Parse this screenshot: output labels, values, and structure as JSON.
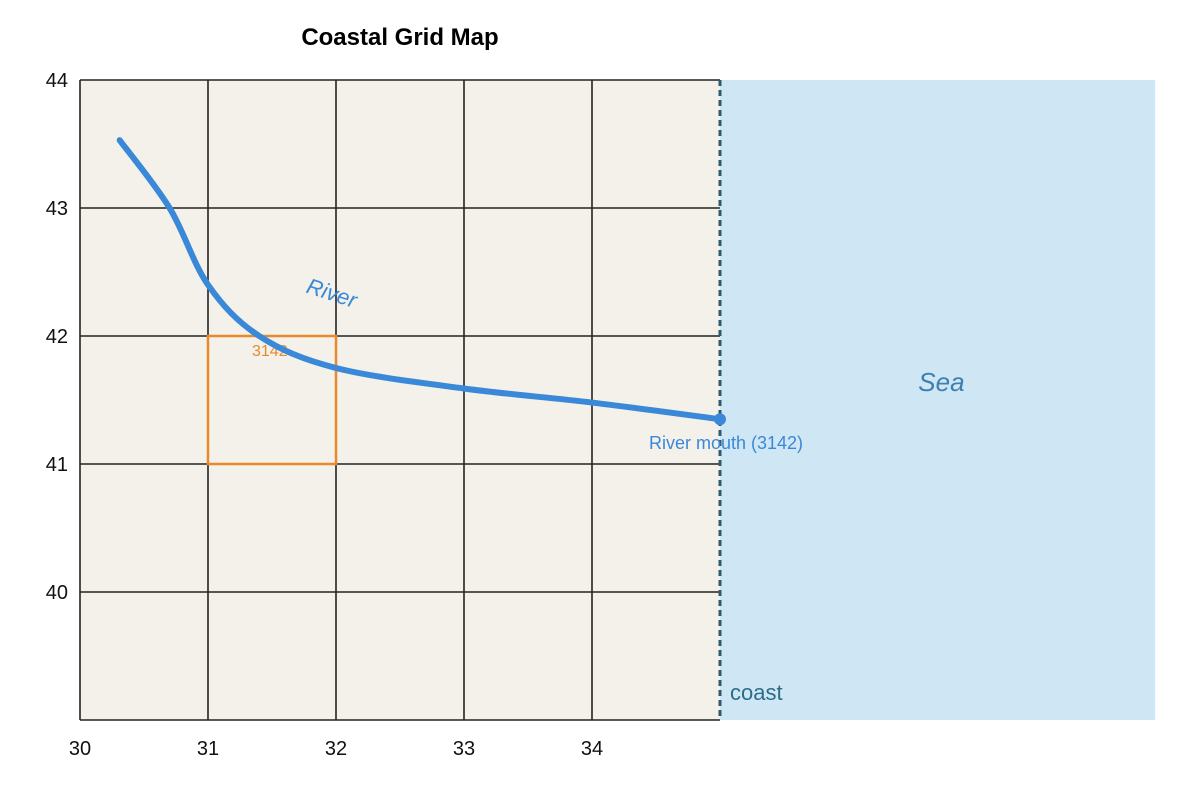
{
  "title": "Coastal Grid Map",
  "colors": {
    "land": "#f3f1ea",
    "sea": "#cfe7f4",
    "grid": "#222222",
    "river": "#3a88d8",
    "highlight": "#e8892e",
    "coast": "#2e5a6e",
    "sea_text": "#3f7fb0",
    "coast_text": "#2c6c86"
  },
  "axes": {
    "x_ticks": [
      30,
      31,
      32,
      33,
      34
    ],
    "y_ticks": [
      40,
      41,
      42,
      43,
      44
    ],
    "x_range": [
      30,
      35
    ],
    "y_range": [
      39,
      44
    ],
    "sea_x_range": [
      35,
      38.4
    ]
  },
  "coast": {
    "label": "coast",
    "x": 35
  },
  "sea": {
    "label": "Sea",
    "x": 36.73,
    "y": 41.57
  },
  "river": {
    "label": "River",
    "label_position": {
      "x": 31.95,
      "y": 42.28
    },
    "path": [
      [
        30.31,
        43.53
      ],
      [
        30.7,
        43.0
      ],
      [
        31.0,
        42.4
      ],
      [
        31.4,
        42.0
      ],
      [
        32.0,
        41.75
      ],
      [
        33.0,
        41.59
      ],
      [
        34.0,
        41.48
      ],
      [
        35.0,
        41.35
      ]
    ]
  },
  "river_mouth": {
    "label": "River mouth (3142)",
    "x": 35.0,
    "y": 41.35
  },
  "highlight_cell": {
    "label": "3142",
    "x": [
      31,
      32
    ],
    "y": [
      41,
      42
    ]
  }
}
